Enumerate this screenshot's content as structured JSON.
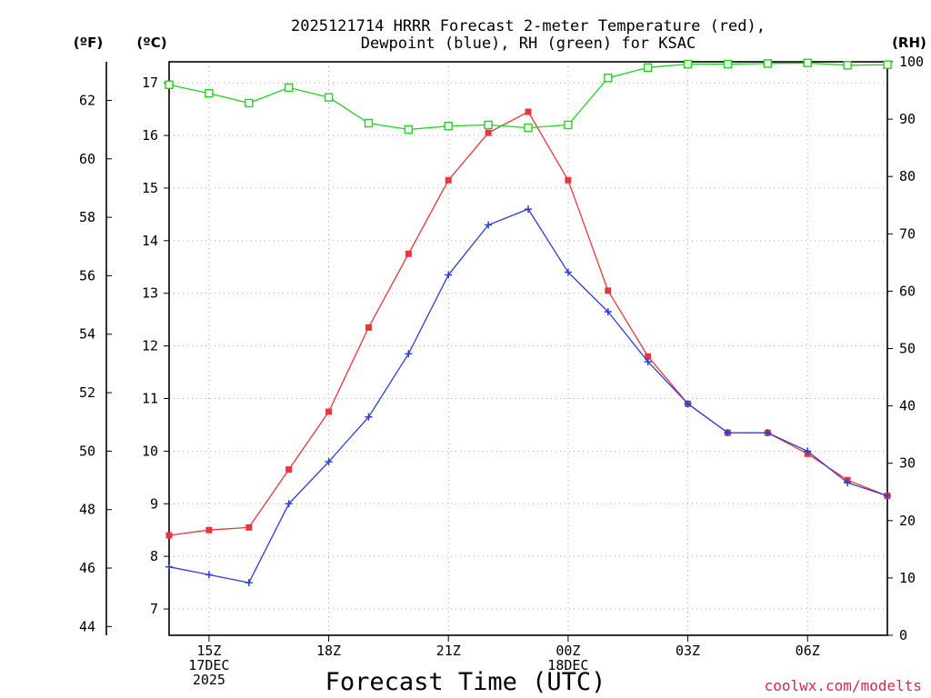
{
  "chart_data": {
    "type": "line",
    "title_line1": "2025121714 HRRR Forecast 2-meter Temperature (red),",
    "title_line2": "Dewpoint (blue), RH (green) for KSAC",
    "xlabel": "Forecast Time (UTC)",
    "left_unit_f": "(ºF)",
    "left_unit_c": "(ºC)",
    "right_unit": "(RH)",
    "credit": "coolwx.com/modelts",
    "x_hours": [
      14,
      15,
      16,
      17,
      18,
      19,
      20,
      21,
      22,
      23,
      24,
      25,
      26,
      27,
      28,
      29,
      30,
      31,
      32
    ],
    "xlim": [
      14,
      32
    ],
    "x_ticks": [
      {
        "hour": 15,
        "lines": [
          "15Z",
          "17DEC",
          "2025"
        ]
      },
      {
        "hour": 18,
        "lines": [
          "18Z"
        ]
      },
      {
        "hour": 21,
        "lines": [
          "21Z"
        ]
      },
      {
        "hour": 24,
        "lines": [
          "00Z",
          "18DEC"
        ]
      },
      {
        "hour": 27,
        "lines": [
          "03Z"
        ]
      },
      {
        "hour": 30,
        "lines": [
          "06Z"
        ]
      }
    ],
    "ylim_c": [
      6.5,
      17.4
    ],
    "y_ticks_c": [
      "7",
      "8",
      "9",
      "10",
      "11",
      "12",
      "13",
      "14",
      "15",
      "16",
      "17"
    ],
    "y_ticks_f": [
      "44",
      "46",
      "48",
      "50",
      "52",
      "54",
      "56",
      "58",
      "60",
      "62"
    ],
    "ylim_rh": [
      0,
      100
    ],
    "y_ticks_rh": [
      "0",
      "10",
      "20",
      "30",
      "40",
      "50",
      "60",
      "70",
      "80",
      "90",
      "100"
    ],
    "series": [
      {
        "name": "Temperature",
        "color": "#e8373b",
        "marker": "square",
        "axis": "celsius",
        "values": [
          8.4,
          8.5,
          8.55,
          9.65,
          10.75,
          12.35,
          13.75,
          15.15,
          16.05,
          16.45,
          15.15,
          13.05,
          11.8,
          10.9,
          10.35,
          10.35,
          9.95,
          9.45,
          9.15
        ]
      },
      {
        "name": "Dewpoint",
        "color": "#2b3fd6",
        "marker": "plus",
        "axis": "celsius",
        "values": [
          7.8,
          7.65,
          7.5,
          9.0,
          9.8,
          10.65,
          11.85,
          13.35,
          14.3,
          14.6,
          13.4,
          12.65,
          11.7,
          10.9,
          10.35,
          10.35,
          10.0,
          9.4,
          9.15
        ]
      },
      {
        "name": "RH",
        "color": "#1ed41e",
        "marker": "open-square",
        "axis": "rh",
        "values": [
          96,
          94.5,
          92.8,
          95.5,
          93.8,
          89.3,
          88.2,
          88.8,
          89.0,
          88.5,
          89.0,
          97.2,
          99.0,
          99.6,
          99.6,
          99.7,
          99.8,
          99.4,
          99.5
        ]
      }
    ]
  }
}
